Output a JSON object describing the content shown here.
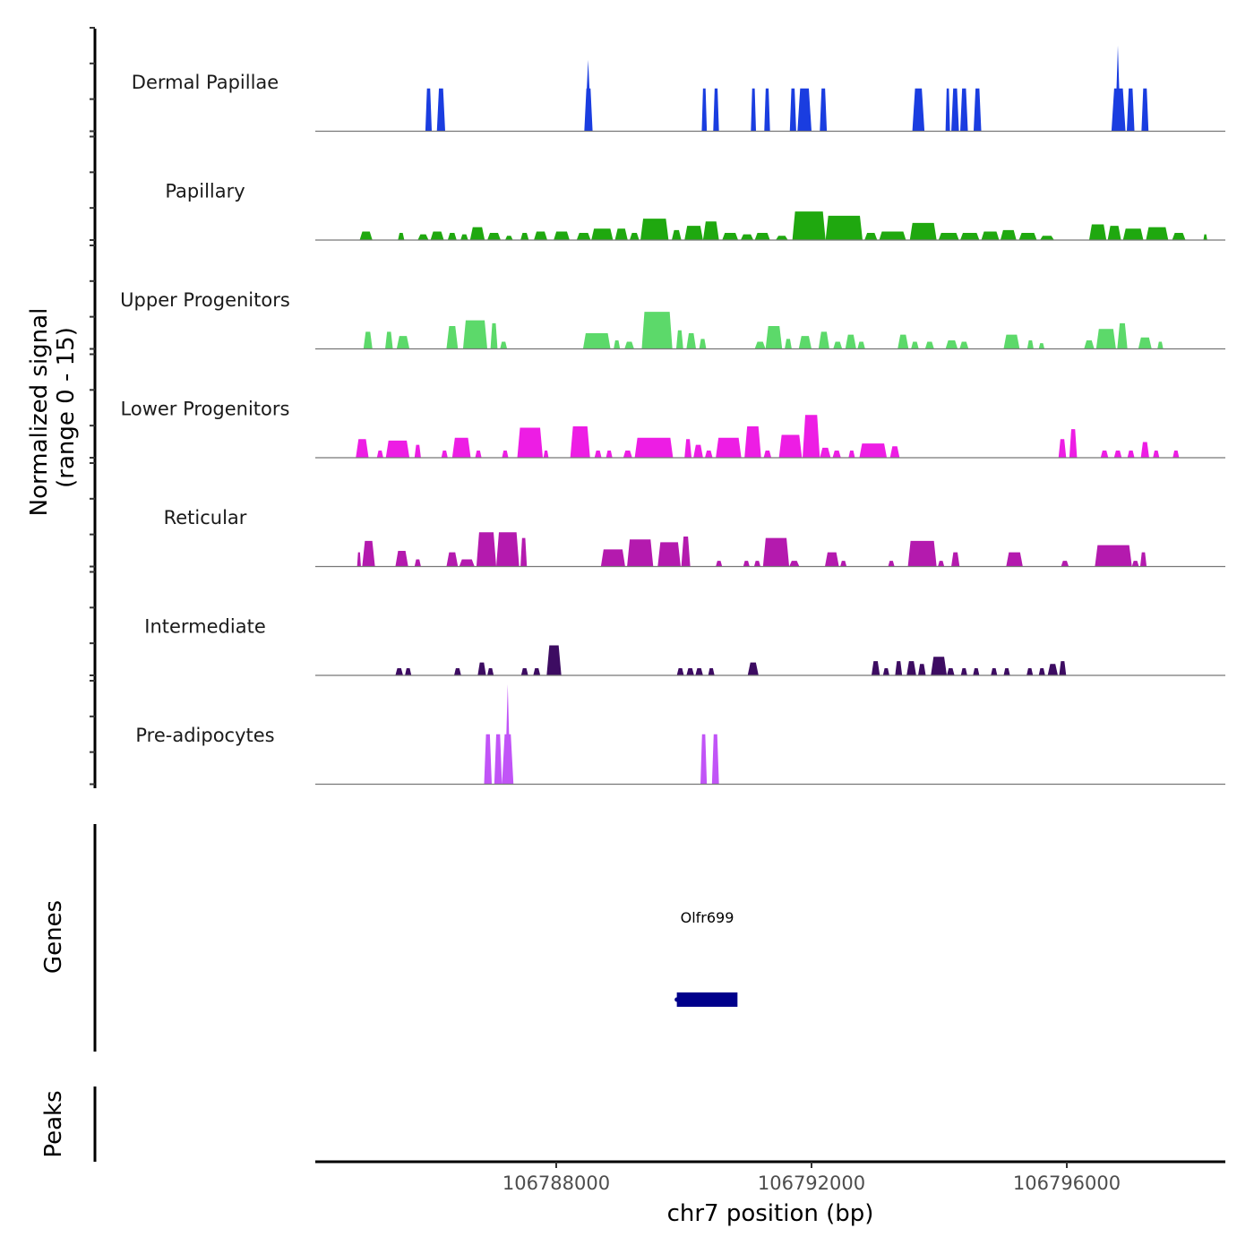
{
  "chart_data": {
    "type": "area",
    "title": "",
    "ylabel": "Normalized signal\n(range 0 - 15)",
    "ylabel_lines": [
      "Normalized signal",
      "(range 0 - 15)"
    ],
    "ylim": [
      0,
      15
    ],
    "xlabel": "chr7 position (bp)",
    "xlim": [
      106784225,
      106798484
    ],
    "x_ticks": [
      106788000,
      106792000,
      106796000
    ],
    "x_tick_labels": [
      "106788000",
      "106792000",
      "106796000"
    ],
    "grid": false,
    "series": [
      {
        "name": "Dermal Papillae",
        "color": "#1a3de0",
        "segments": [
          [
            106785950,
            106786050,
            6
          ],
          [
            106786130,
            106786260,
            6
          ],
          [
            106788440,
            106788570,
            6,
            106788500,
            10
          ],
          [
            106790280,
            106790360,
            6
          ],
          [
            106790460,
            106790550,
            6
          ],
          [
            106791050,
            106791130,
            6
          ],
          [
            106791260,
            106791350,
            6
          ],
          [
            106791660,
            106791760,
            6
          ],
          [
            106791780,
            106792000,
            6
          ],
          [
            106792130,
            106792240,
            6
          ],
          [
            106793580,
            106793770,
            6
          ],
          [
            106794100,
            106794170,
            6
          ],
          [
            106794190,
            106794310,
            6
          ],
          [
            106794330,
            106794450,
            6
          ],
          [
            106794540,
            106794660,
            6
          ],
          [
            106796700,
            106796920,
            6,
            106796800,
            12
          ],
          [
            106796940,
            106797060,
            6
          ],
          [
            106797170,
            106797280,
            6
          ]
        ]
      },
      {
        "name": "Papillary",
        "color": "#1fa80f",
        "segments": [
          [
            106784920,
            106785120,
            1.2
          ],
          [
            106785520,
            106785620,
            1.0
          ],
          [
            106785830,
            106786000,
            0.8
          ],
          [
            106786030,
            106786240,
            1.2
          ],
          [
            106786300,
            106786440,
            1.0
          ],
          [
            106786500,
            106786620,
            0.8
          ],
          [
            106786650,
            106786880,
            1.8
          ],
          [
            106786920,
            106787130,
            1.0
          ],
          [
            106787200,
            106787320,
            0.6
          ],
          [
            106787440,
            106787570,
            1.0
          ],
          [
            106787650,
            106787860,
            1.2
          ],
          [
            106787960,
            106788210,
            1.2
          ],
          [
            106788320,
            106788540,
            1.0
          ],
          [
            106788550,
            106788890,
            1.6
          ],
          [
            106788920,
            106789120,
            1.6
          ],
          [
            106789150,
            106789300,
            1.0
          ],
          [
            106789320,
            106789760,
            3.0
          ],
          [
            106789810,
            106789960,
            1.4
          ],
          [
            106790010,
            106790300,
            2.0
          ],
          [
            106790300,
            106790550,
            2.6
          ],
          [
            106790600,
            106790850,
            1.0
          ],
          [
            106790890,
            106791090,
            0.8
          ],
          [
            106791110,
            106791350,
            1.0
          ],
          [
            106791440,
            106791630,
            0.6
          ],
          [
            106791700,
            106792220,
            4.0
          ],
          [
            106792220,
            106792800,
            3.4
          ],
          [
            106792830,
            106793030,
            1.0
          ],
          [
            106793060,
            106793480,
            1.2
          ],
          [
            106793540,
            106793960,
            2.4
          ],
          [
            106793990,
            106794310,
            1.0
          ],
          [
            106794330,
            106794630,
            1.0
          ],
          [
            106794660,
            106794940,
            1.2
          ],
          [
            106794960,
            106795210,
            1.4
          ],
          [
            106795250,
            106795530,
            1.0
          ],
          [
            106795580,
            106795800,
            0.6
          ],
          [
            106796350,
            106796620,
            2.2
          ],
          [
            106796640,
            106796850,
            2.0
          ],
          [
            106796880,
            106797200,
            1.6
          ],
          [
            106797240,
            106797590,
            1.8
          ],
          [
            106797650,
            106797860,
            1.0
          ],
          [
            106798140,
            106798200,
            0.8
          ]
        ]
      },
      {
        "name": "Upper Progenitors",
        "color": "#5cd96a",
        "segments": [
          [
            106784980,
            106785120,
            2.4
          ],
          [
            106785320,
            106785440,
            2.4
          ],
          [
            106785500,
            106785700,
            1.8
          ],
          [
            106786280,
            106786460,
            3.2
          ],
          [
            106786540,
            106786920,
            4.0
          ],
          [
            106786970,
            106787080,
            3.6
          ],
          [
            106787120,
            106787230,
            1.0
          ],
          [
            106788420,
            106788850,
            2.2
          ],
          [
            106788900,
            106789000,
            1.2
          ],
          [
            106789070,
            106789220,
            1.0
          ],
          [
            106789340,
            106789820,
            5.2
          ],
          [
            106789880,
            106789990,
            2.6
          ],
          [
            106790040,
            106790190,
            2.2
          ],
          [
            106790240,
            106790350,
            1.4
          ],
          [
            106791110,
            106791280,
            1.0
          ],
          [
            106791280,
            106791540,
            3.2
          ],
          [
            106791580,
            106791690,
            1.4
          ],
          [
            106791800,
            106792000,
            1.8
          ],
          [
            106792110,
            106792280,
            2.4
          ],
          [
            106792340,
            106792480,
            1.0
          ],
          [
            106792530,
            106792700,
            2.0
          ],
          [
            106792720,
            106792840,
            1.0
          ],
          [
            106793350,
            106793520,
            2.0
          ],
          [
            106793560,
            106793680,
            1.0
          ],
          [
            106793780,
            106793920,
            1.0
          ],
          [
            106794100,
            106794290,
            1.2
          ],
          [
            106794320,
            106794460,
            1.0
          ],
          [
            106795010,
            106795260,
            2.0
          ],
          [
            106795380,
            106795480,
            1.2
          ],
          [
            106795560,
            106795650,
            0.8
          ],
          [
            106796270,
            106796430,
            1.2
          ],
          [
            106796460,
            106796770,
            2.8
          ],
          [
            106796790,
            106796950,
            3.6
          ],
          [
            106797120,
            106797330,
            1.6
          ],
          [
            106797420,
            106797510,
            1.0
          ]
        ]
      },
      {
        "name": "Lower Progenitors",
        "color": "#ed1de4",
        "segments": [
          [
            106784860,
            106785060,
            2.6
          ],
          [
            106785190,
            106785290,
            1.0
          ],
          [
            106785330,
            106785700,
            2.4
          ],
          [
            106785780,
            106785880,
            1.8
          ],
          [
            106786200,
            106786300,
            1.0
          ],
          [
            106786370,
            106786660,
            2.8
          ],
          [
            106786730,
            106786830,
            1.0
          ],
          [
            106787150,
            106787250,
            1.0
          ],
          [
            106787390,
            106787790,
            4.2
          ],
          [
            106787800,
            106787880,
            1.0
          ],
          [
            106788220,
            106788530,
            4.4
          ],
          [
            106788600,
            106788710,
            1.0
          ],
          [
            106788780,
            106788880,
            1.0
          ],
          [
            106789050,
            106789190,
            1.0
          ],
          [
            106789230,
            106789830,
            2.8
          ],
          [
            106790010,
            106790120,
            2.6
          ],
          [
            106790150,
            106790300,
            1.8
          ],
          [
            106790330,
            106790450,
            1.0
          ],
          [
            106790500,
            106790900,
            2.8
          ],
          [
            106790950,
            106791210,
            4.4
          ],
          [
            106791250,
            106791370,
            1.0
          ],
          [
            106791490,
            106791850,
            3.2
          ],
          [
            106791860,
            106792130,
            6.0
          ],
          [
            106792130,
            106792300,
            1.4
          ],
          [
            106792330,
            106792460,
            1.0
          ],
          [
            106792580,
            106792680,
            1.0
          ],
          [
            106792750,
            106793180,
            2.0
          ],
          [
            106793230,
            106793380,
            1.6
          ],
          [
            106795870,
            106795990,
            2.6
          ],
          [
            106796040,
            106796160,
            4.0
          ],
          [
            106796530,
            106796650,
            1.0
          ],
          [
            106796740,
            106796860,
            1.0
          ],
          [
            106796950,
            106797060,
            1.0
          ],
          [
            106797160,
            106797290,
            2.2
          ],
          [
            106797350,
            106797450,
            1.0
          ],
          [
            106797660,
            106797760,
            1.0
          ]
        ]
      },
      {
        "name": "Reticular",
        "color": "#b41aae",
        "segments": [
          [
            106784880,
            106784940,
            2.0
          ],
          [
            106784960,
            106785160,
            3.6
          ],
          [
            106785480,
            106785680,
            2.2
          ],
          [
            106785780,
            106785880,
            1.0
          ],
          [
            106786280,
            106786460,
            2.0
          ],
          [
            106786480,
            106786720,
            1.0
          ],
          [
            106786750,
            106787060,
            4.8
          ],
          [
            106787060,
            106787420,
            4.8
          ],
          [
            106787440,
            106787540,
            4.0
          ],
          [
            106788700,
            106789080,
            2.4
          ],
          [
            106789110,
            106789520,
            3.8
          ],
          [
            106789590,
            106789950,
            3.4
          ],
          [
            106789960,
            106790100,
            4.2
          ],
          [
            106790500,
            106790600,
            0.8
          ],
          [
            106790930,
            106791030,
            0.8
          ],
          [
            106791100,
            106791200,
            0.8
          ],
          [
            106791240,
            106791650,
            4.0
          ],
          [
            106791650,
            106791810,
            0.8
          ],
          [
            106792210,
            106792430,
            2.0
          ],
          [
            106792450,
            106792550,
            0.8
          ],
          [
            106793200,
            106793300,
            0.8
          ],
          [
            106793510,
            106793960,
            3.6
          ],
          [
            106793980,
            106794080,
            0.8
          ],
          [
            106794190,
            106794320,
            2.0
          ],
          [
            106795050,
            106795310,
            2.0
          ],
          [
            106795910,
            106796030,
            0.8
          ],
          [
            106796440,
            106797020,
            3.0
          ],
          [
            106797020,
            106797130,
            0.8
          ],
          [
            106797150,
            106797250,
            2.0
          ]
        ]
      },
      {
        "name": "Intermediate",
        "color": "#3d0c62",
        "segments": [
          [
            106785480,
            106785600,
            1.0
          ],
          [
            106785630,
            106785730,
            1.0
          ],
          [
            106786400,
            106786510,
            1.0
          ],
          [
            106786770,
            106786900,
            1.8
          ],
          [
            106786920,
            106787020,
            1.0
          ],
          [
            106787450,
            106787560,
            1.0
          ],
          [
            106787640,
            106787750,
            1.0
          ],
          [
            106787850,
            106788080,
            4.2
          ],
          [
            106789890,
            106790000,
            1.0
          ],
          [
            106790040,
            106790160,
            1.0
          ],
          [
            106790180,
            106790300,
            1.0
          ],
          [
            106790380,
            106790480,
            1.0
          ],
          [
            106791000,
            106791170,
            1.8
          ],
          [
            106792940,
            106793070,
            2.0
          ],
          [
            106793120,
            106793220,
            1.0
          ],
          [
            106793310,
            106793420,
            2.0
          ],
          [
            106793490,
            106793640,
            2.0
          ],
          [
            106793670,
            106793790,
            1.6
          ],
          [
            106793870,
            106794120,
            2.6
          ],
          [
            106794120,
            106794240,
            1.0
          ],
          [
            106794340,
            106794440,
            1.0
          ],
          [
            106794530,
            106794630,
            1.0
          ],
          [
            106794810,
            106794910,
            1.0
          ],
          [
            106795010,
            106795110,
            1.0
          ],
          [
            106795370,
            106795470,
            1.0
          ],
          [
            106795560,
            106795660,
            1.0
          ],
          [
            106795700,
            106795860,
            1.6
          ],
          [
            106795880,
            106795990,
            2.0
          ]
        ]
      },
      {
        "name": "Pre-adipocytes",
        "color": "#c154f7",
        "segments": [
          [
            106786870,
            106786990,
            7.0
          ],
          [
            106787030,
            106787150,
            7.0
          ],
          [
            106787150,
            106787330,
            7.0,
            106787240,
            14.0
          ],
          [
            106790260,
            106790360,
            7.0
          ],
          [
            106790440,
            106790550,
            7.0
          ]
        ]
      }
    ],
    "genes_track": {
      "label": "Genes",
      "genes": [
        {
          "name": "Olfr699",
          "start": 106789890,
          "end": 106790840,
          "strand": "-",
          "color": "#00008b"
        }
      ]
    },
    "peaks_track": {
      "label": "Peaks",
      "peaks": []
    }
  }
}
